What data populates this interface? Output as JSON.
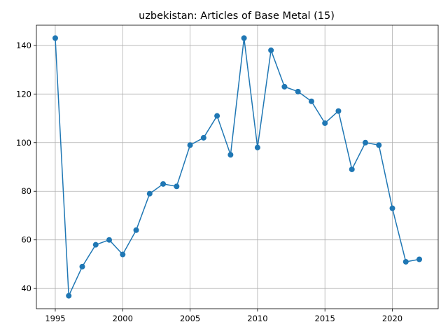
{
  "chart_data": {
    "type": "line",
    "title": "uzbekistan: Articles of Base Metal (15)",
    "xlabel": "",
    "ylabel": "",
    "x": [
      1995,
      1996,
      1997,
      1998,
      1999,
      2000,
      2001,
      2002,
      2003,
      2004,
      2005,
      2006,
      2007,
      2008,
      2009,
      2010,
      2011,
      2012,
      2013,
      2014,
      2015,
      2016,
      2017,
      2018,
      2019,
      2020,
      2021,
      2022
    ],
    "series": [
      {
        "values": [
          143,
          37,
          49,
          58,
          60,
          54,
          64,
          79,
          83,
          82,
          99,
          102,
          111,
          95,
          143,
          98,
          138,
          123,
          121,
          117,
          108,
          113,
          89,
          100,
          99,
          73,
          51,
          52
        ],
        "color": "#1f77b4"
      }
    ],
    "xlim": [
      1993.6,
      2023.4
    ],
    "ylim": [
      31.7,
      148.3
    ],
    "xticks": [
      1995,
      2000,
      2005,
      2010,
      2015,
      2020
    ],
    "yticks": [
      40,
      60,
      80,
      100,
      120,
      140
    ],
    "grid": true,
    "legend": "none"
  }
}
